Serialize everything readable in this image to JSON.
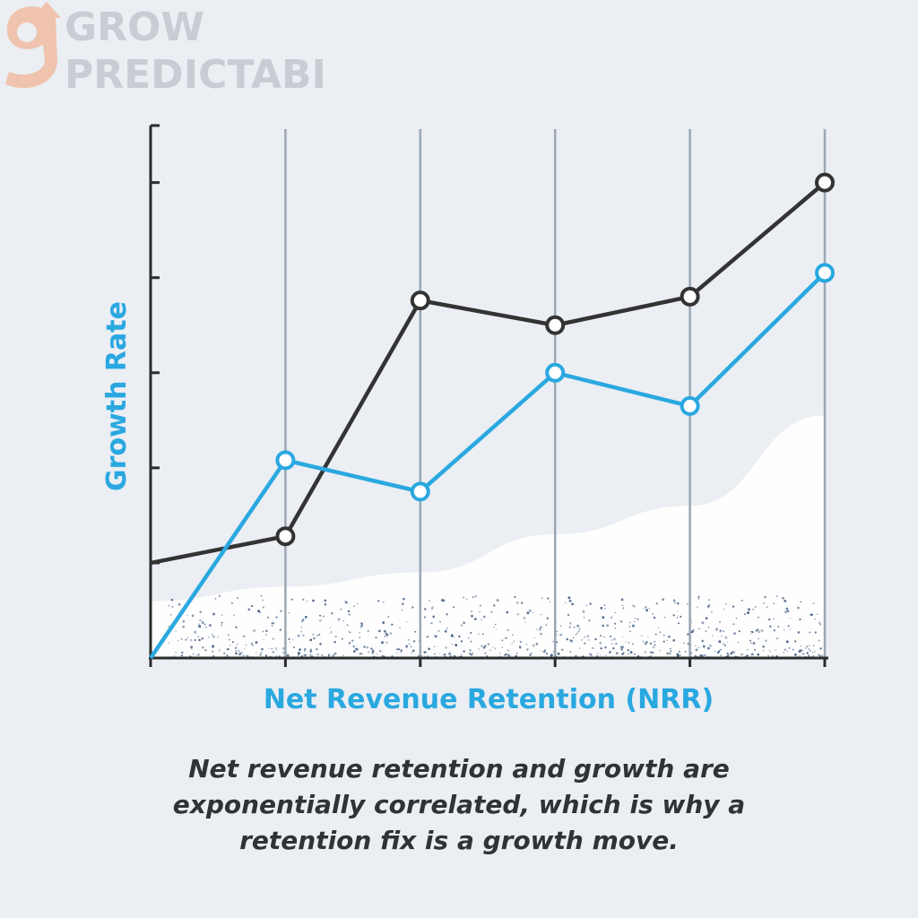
{
  "brand": {
    "line1": "GROW",
    "line2": "PREDICTABLY",
    "monogram": "g"
  },
  "caption": "Net revenue retention and growth are exponentially correlated, which is why a retention fix is a growth move.",
  "colors": {
    "background": "#ebeef3",
    "series_blue": "#2aa8e0",
    "series_dark": "#333333",
    "axis": "#2b2b2b",
    "gridline": "#9aa7b4",
    "label_blue": "#2aa8e0",
    "logo_orange": "#efc3ad",
    "logo_gray": "#c9cdd3"
  },
  "chart_data": {
    "type": "line",
    "xlabel": "Net Revenue Retention (NRR)",
    "ylabel": "Growth Rate",
    "x": [
      0,
      1,
      2,
      3,
      4,
      5
    ],
    "xlim": [
      0,
      5
    ],
    "ylim": [
      0,
      5.6
    ],
    "grid": "vertical",
    "tick_labels_shown": false,
    "series": [
      {
        "color": "#333333",
        "values": [
          1.0,
          1.28,
          3.76,
          3.5,
          3.8,
          5.0
        ],
        "markers": [
          false,
          true,
          true,
          true,
          true,
          true
        ]
      },
      {
        "color": "#2aa8e0",
        "values": [
          0.0,
          2.08,
          1.75,
          3.0,
          2.65,
          4.05
        ],
        "markers": [
          false,
          true,
          true,
          true,
          true,
          true
        ]
      }
    ],
    "background_area": [
      0.6,
      0.75,
      0.9,
      1.3,
      1.6,
      2.55
    ]
  }
}
